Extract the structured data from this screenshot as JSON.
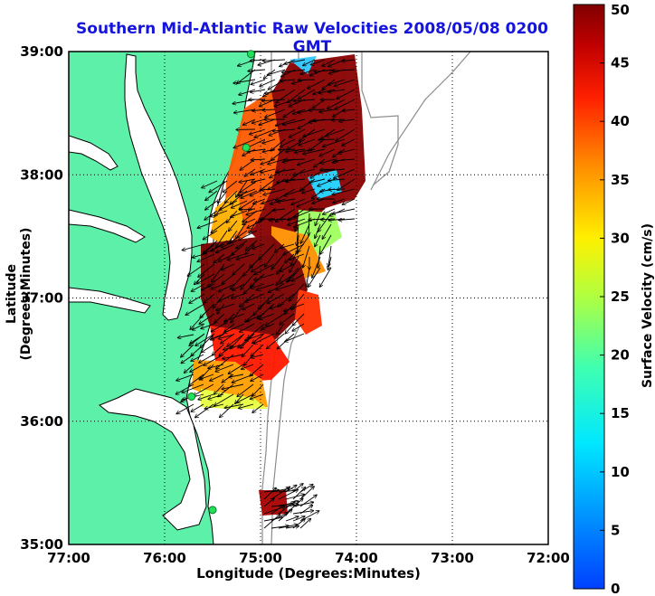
{
  "title": "Southern Mid-Atlantic Raw Velocities 2008/05/08 0200 GMT",
  "xaxis": {
    "label": "Longitude (Degrees:Minutes)",
    "range": [
      -77,
      -72
    ],
    "ticks": [
      {
        "value": -77,
        "label": "77:00"
      },
      {
        "value": -76,
        "label": "76:00"
      },
      {
        "value": -75,
        "label": "75:00"
      },
      {
        "value": -74,
        "label": "74:00"
      },
      {
        "value": -73,
        "label": "73:00"
      },
      {
        "value": -72,
        "label": "72:00"
      }
    ]
  },
  "yaxis": {
    "label": "Latitude (Degrees:Minutes)",
    "range": [
      35,
      39
    ],
    "ticks": [
      {
        "value": 39,
        "label": "39:00"
      },
      {
        "value": 38,
        "label": "38:00"
      },
      {
        "value": 37,
        "label": "37:00"
      },
      {
        "value": 36,
        "label": "36:00"
      },
      {
        "value": 35,
        "label": "35:00"
      }
    ]
  },
  "colorbar": {
    "label": "Surface Velocity (cm/s)",
    "range": [
      0,
      50
    ],
    "ticks": [
      0,
      5,
      10,
      15,
      20,
      25,
      30,
      35,
      40,
      45,
      50
    ],
    "colormap": "jet"
  },
  "colors": {
    "land": "#5cf0a8",
    "coast": "#000000",
    "bathymetry": "#8c8c8c",
    "title": "#1414dc",
    "station": "#22e05a"
  },
  "grid": "dotted",
  "stations": [
    {
      "lon": -75.1,
      "lat": 38.98
    },
    {
      "lon": -75.15,
      "lat": 38.22
    },
    {
      "lon": -75.72,
      "lat": 36.2
    },
    {
      "lon": -75.5,
      "lat": 35.28
    }
  ]
}
